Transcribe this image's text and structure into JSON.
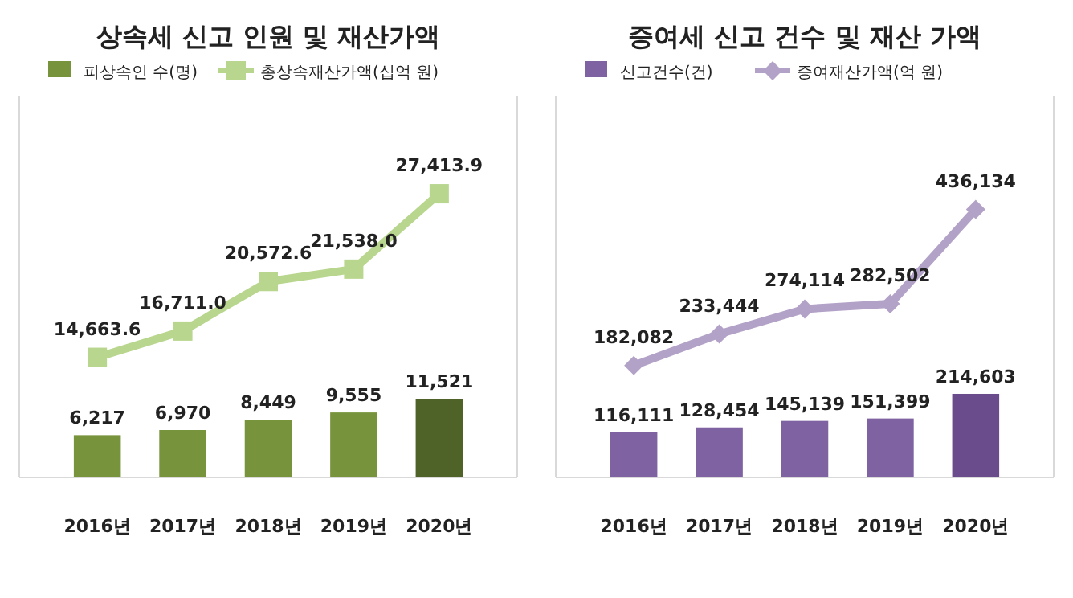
{
  "chart_data": [
    {
      "type": "bar",
      "title": "상속세 신고 인원 및 재산가액",
      "categories": [
        "2016년",
        "2017년",
        "2018년",
        "2019년",
        "2020년"
      ],
      "ylim": [
        0,
        56000
      ],
      "y2lim": [
        5300,
        35000
      ],
      "tick_labels": "x",
      "legend": "top left",
      "marker": "square",
      "series": [
        {
          "name": "피상속인 수(명)",
          "color": "#77933c",
          "colors": [
            "#77933c",
            "#77933c",
            "#77933c",
            "#77933c",
            "#4f6228"
          ],
          "values": [
            6217,
            6970,
            8449,
            9555,
            11521
          ],
          "value_labels": [
            "6,217",
            "6,970",
            "8,449",
            "9,555",
            "11,521"
          ]
        },
        {
          "name": "총상속재산가액(십억 원)",
          "type": "line",
          "axis": "y2",
          "color": "#b8d68e",
          "values": [
            14663.6,
            16711.0,
            20572.6,
            21538.0,
            27413.9
          ],
          "value_labels": [
            "14,663.6",
            "16,711.0",
            "20,572.6",
            "21,538.0",
            "27,413.9"
          ]
        }
      ]
    },
    {
      "type": "bar",
      "title": "증여세 신고 건수 및 재산 가액",
      "categories": [
        "2016년",
        "2017년",
        "2018년",
        "2019년",
        "2020년"
      ],
      "ylim": [
        0,
        978000
      ],
      "y2lim": [
        0,
        620000
      ],
      "tick_labels": "x",
      "legend": "top left",
      "marker": "diamond",
      "series": [
        {
          "name": "신고건수(건)",
          "color": "#7f62a1",
          "colors": [
            "#7f62a1",
            "#7f62a1",
            "#7f62a1",
            "#7f62a1",
            "#6a4c8c"
          ],
          "values": [
            116111,
            128454,
            145139,
            151399,
            214603
          ],
          "value_labels": [
            "116,111",
            "128,454",
            "145,139",
            "151,399",
            "214,603"
          ]
        },
        {
          "name": "증여재산가액(억 원)",
          "type": "line",
          "axis": "y2",
          "color": "#b3a2c7",
          "values": [
            182082,
            233444,
            274114,
            282502,
            436134
          ],
          "value_labels": [
            "182,082",
            "233,444",
            "274,114",
            "282,502",
            "436,134"
          ]
        }
      ]
    }
  ]
}
